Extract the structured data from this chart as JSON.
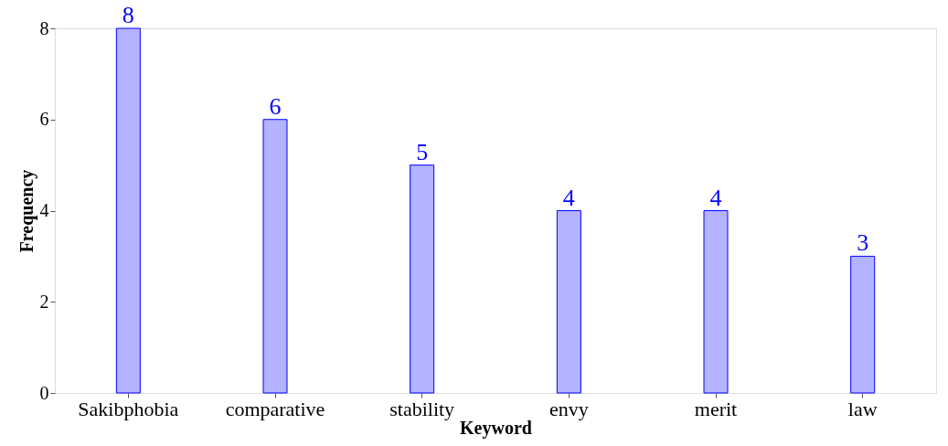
{
  "chart_data": {
    "type": "bar",
    "xlabel": "Keyword",
    "ylabel": "Frequency",
    "categories": [
      "Sakibphobia",
      "comparative",
      "stability",
      "envy",
      "merit",
      "law"
    ],
    "series": [
      {
        "color": "#b3b3ff",
        "values": [
          8,
          6,
          5,
          4,
          4,
          3
        ]
      }
    ],
    "ylim": [
      0,
      8
    ],
    "yticks": [
      0,
      2,
      4,
      6,
      8
    ],
    "grid": false,
    "data_labels": true
  }
}
